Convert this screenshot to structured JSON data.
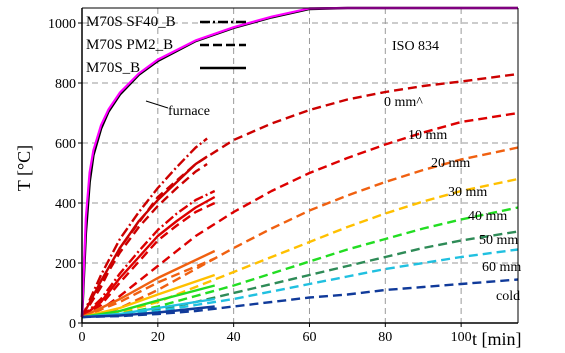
{
  "chart_data": {
    "type": "line",
    "xlabel": "t [min]",
    "ylabel": "T [°C]",
    "xlim": [
      0,
      115
    ],
    "ylim": [
      0,
      1050
    ],
    "x_ticks": [
      "0",
      "20",
      "40",
      "60",
      "80",
      "100"
    ],
    "y_ticks": [
      "0",
      "200",
      "400",
      "600",
      "800",
      "1000"
    ],
    "grid": true,
    "legend_position": "top-left",
    "legend": [
      {
        "label": "M70S SF40_B",
        "style": "dash-dot"
      },
      {
        "label": "M70S PM2_B",
        "style": "dashed"
      },
      {
        "label": "M70S_B",
        "style": "solid"
      }
    ],
    "annotations": {
      "iso": "ISO 834",
      "furnace": "furnace",
      "depths": [
        "0 mm^",
        "10 mm",
        "20 mm",
        "30 mm",
        "40 mm",
        "50 mm",
        "60 mm",
        "cold"
      ]
    },
    "iso_curve": {
      "color": "#ff00ff",
      "x": [
        0,
        1,
        2,
        3,
        5,
        7,
        10,
        15,
        20,
        30,
        40,
        50,
        60,
        70,
        80,
        90,
        100,
        115
      ],
      "y": [
        20,
        349,
        502,
        576,
        659,
        712,
        768,
        832,
        878,
        942,
        986,
        1021,
        1049,
        1073,
        1094,
        1113,
        1129,
        1151
      ]
    },
    "furnace_curve": {
      "color": "#000000",
      "x": [
        0,
        1,
        2,
        3,
        5,
        7,
        10,
        15,
        20,
        30,
        40,
        50,
        60,
        70,
        80,
        90,
        100,
        115
      ],
      "y": [
        20,
        300,
        470,
        560,
        648,
        705,
        762,
        828,
        874,
        940,
        984,
        1019,
        1047,
        1071,
        1092,
        1111,
        1127,
        1149
      ]
    },
    "series": [
      {
        "group": "0 mm",
        "style": "dashed",
        "color": "#cc0000",
        "x": [
          0,
          5,
          10,
          20,
          30,
          40,
          50,
          60,
          70,
          80,
          90,
          100,
          115
        ],
        "y": [
          20,
          120,
          250,
          420,
          530,
          610,
          665,
          710,
          745,
          770,
          790,
          805,
          830
        ]
      },
      {
        "group": "0 mm",
        "style": "solid",
        "color": "#cc0000",
        "x": [
          0,
          5,
          10,
          15,
          20,
          25,
          30,
          33
        ],
        "y": [
          20,
          140,
          250,
          340,
          410,
          470,
          530,
          555
        ]
      },
      {
        "group": "0 mm",
        "style": "dash-dot",
        "color": "#cc0000",
        "x": [
          0,
          5,
          10,
          15,
          20,
          25,
          30,
          33
        ],
        "y": [
          20,
          160,
          280,
          370,
          450,
          520,
          585,
          615
        ]
      },
      {
        "group": "0 mm",
        "style": "dashed",
        "color": "#cc0000",
        "x": [
          0,
          5,
          10,
          15,
          20,
          25,
          30,
          33
        ],
        "y": [
          20,
          130,
          235,
          320,
          390,
          450,
          505,
          530
        ]
      },
      {
        "group": "10 mm",
        "style": "dashed",
        "color": "#dd0000",
        "x": [
          0,
          5,
          10,
          20,
          30,
          40,
          50,
          60,
          70,
          80,
          90,
          100,
          115
        ],
        "y": [
          20,
          45,
          90,
          190,
          290,
          370,
          440,
          500,
          550,
          595,
          635,
          670,
          700
        ]
      },
      {
        "group": "10 mm",
        "style": "solid",
        "color": "#dd0000",
        "x": [
          0,
          5,
          10,
          15,
          20,
          25,
          30,
          35
        ],
        "y": [
          20,
          70,
          150,
          220,
          290,
          340,
          385,
          420
        ]
      },
      {
        "group": "10 mm",
        "style": "dash-dot",
        "color": "#dd0000",
        "x": [
          0,
          5,
          10,
          15,
          20,
          25,
          30,
          35
        ],
        "y": [
          20,
          80,
          165,
          240,
          310,
          365,
          410,
          440
        ]
      },
      {
        "group": "10 mm",
        "style": "dashed",
        "color": "#dd0000",
        "x": [
          0,
          5,
          10,
          15,
          20,
          25,
          30,
          35
        ],
        "y": [
          20,
          60,
          135,
          205,
          275,
          325,
          370,
          400
        ]
      },
      {
        "group": "20 mm",
        "style": "dashed",
        "color": "#f06010",
        "x": [
          0,
          5,
          10,
          20,
          30,
          40,
          50,
          60,
          70,
          80,
          90,
          100,
          115
        ],
        "y": [
          20,
          30,
          50,
          110,
          180,
          250,
          315,
          375,
          425,
          470,
          510,
          545,
          585
        ]
      },
      {
        "group": "20 mm",
        "style": "solid",
        "color": "#f06010",
        "x": [
          0,
          10,
          20,
          35
        ],
        "y": [
          20,
          80,
          150,
          240
        ]
      },
      {
        "group": "20 mm",
        "style": "dashed",
        "color": "#f06010",
        "x": [
          0,
          10,
          20,
          35
        ],
        "y": [
          20,
          70,
          135,
          215
        ]
      },
      {
        "group": "30 mm",
        "style": "dashed",
        "color": "#ffc000",
        "x": [
          0,
          10,
          20,
          30,
          40,
          50,
          60,
          70,
          80,
          90,
          100,
          115
        ],
        "y": [
          20,
          35,
          70,
          120,
          170,
          220,
          270,
          320,
          365,
          405,
          440,
          480
        ]
      },
      {
        "group": "30 mm",
        "style": "solid",
        "color": "#ffc000",
        "x": [
          0,
          10,
          20,
          35
        ],
        "y": [
          20,
          50,
          95,
          160
        ]
      },
      {
        "group": "40 mm",
        "style": "dashed",
        "color": "#22dd22",
        "x": [
          0,
          10,
          20,
          30,
          40,
          50,
          60,
          70,
          80,
          90,
          100,
          115
        ],
        "y": [
          20,
          30,
          55,
          90,
          125,
          165,
          205,
          245,
          280,
          315,
          345,
          385
        ]
      },
      {
        "group": "40 mm",
        "style": "solid",
        "color": "#22dd22",
        "x": [
          0,
          10,
          20,
          35
        ],
        "y": [
          20,
          40,
          75,
          125
        ]
      },
      {
        "group": "50 mm",
        "style": "dashed",
        "color": "#2e8b57",
        "x": [
          0,
          10,
          20,
          30,
          40,
          50,
          60,
          70,
          80,
          90,
          100,
          115
        ],
        "y": [
          20,
          28,
          45,
          70,
          100,
          130,
          160,
          190,
          220,
          250,
          275,
          305
        ]
      },
      {
        "group": "60 mm",
        "style": "dashed",
        "color": "#20c0e0",
        "x": [
          0,
          10,
          20,
          30,
          40,
          50,
          60,
          70,
          80,
          90,
          100,
          115
        ],
        "y": [
          20,
          26,
          40,
          60,
          80,
          105,
          130,
          155,
          180,
          200,
          220,
          245
        ]
      },
      {
        "group": "60 mm",
        "style": "solid",
        "color": "#20c0e0",
        "x": [
          0,
          10,
          20,
          35
        ],
        "y": [
          20,
          30,
          50,
          80
        ]
      },
      {
        "group": "cold",
        "style": "dashed",
        "color": "#103a9a",
        "x": [
          0,
          10,
          20,
          30,
          40,
          50,
          60,
          70,
          80,
          90,
          100,
          115
        ],
        "y": [
          20,
          23,
          30,
          40,
          55,
          70,
          85,
          95,
          110,
          120,
          130,
          145
        ]
      },
      {
        "group": "cold",
        "style": "solid",
        "color": "#103a9a",
        "x": [
          0,
          10,
          20,
          35
        ],
        "y": [
          20,
          25,
          35,
          55
        ]
      }
    ]
  }
}
